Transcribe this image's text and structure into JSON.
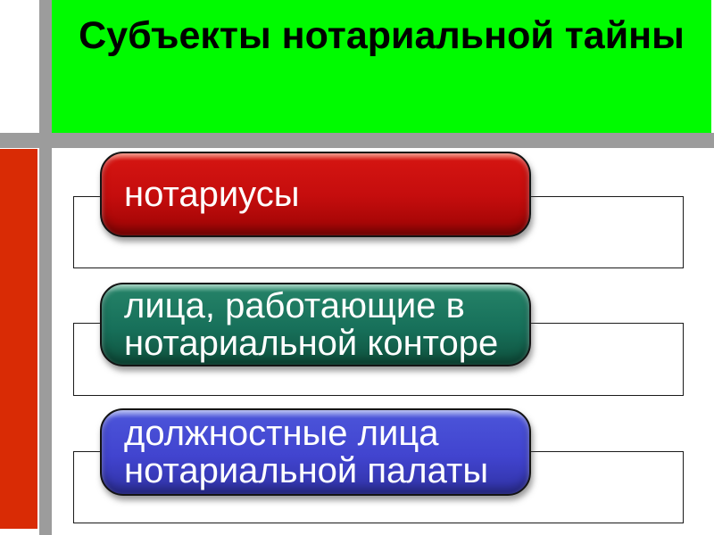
{
  "title": "Субъекты нотариальной тайны",
  "items": [
    {
      "label": "нотариусы",
      "color": "#c50d0d"
    },
    {
      "label": "лица, работающие в нотариальной конторе",
      "color": "#17705a"
    },
    {
      "label": "должностные лица нотариальной палаты",
      "color": "#4144cf"
    }
  ],
  "colors": {
    "header_bg": "#00fb00",
    "accent_bar_red": "#d92b05",
    "frame_gray": "#9c9c9c",
    "title_text": "#000000",
    "item_text": "#ffffff",
    "outline_border": "#1a1a1a"
  }
}
